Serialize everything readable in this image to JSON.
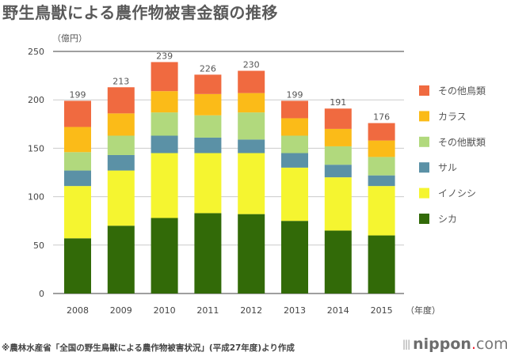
{
  "title": "野生鳥獣による農作物被害金額の推移",
  "unit_label": "（億円）",
  "year_label": "（年度）",
  "source": "※農林水産省「全国の野生鳥獣による農作物被害状況」(平成27年度)より作成",
  "logo": {
    "name": "nippon",
    "dot": ".",
    "suffix": "com"
  },
  "chart_data": {
    "type": "bar",
    "stacked": true,
    "title": "野生鳥獣による農作物被害金額の推移",
    "xlabel": "（年度）",
    "ylabel": "（億円）",
    "ylim": [
      0,
      250
    ],
    "yticks": [
      0,
      50,
      100,
      150,
      200,
      250
    ],
    "grid": true,
    "legend_position": "right",
    "categories": [
      "2008",
      "2009",
      "2010",
      "2011",
      "2012",
      "2013",
      "2014",
      "2015"
    ],
    "totals": [
      199,
      213,
      239,
      226,
      230,
      199,
      191,
      176
    ],
    "series": [
      {
        "name": "シカ",
        "color": "#326a08",
        "values": [
          57,
          70,
          78,
          83,
          82,
          75,
          65,
          60
        ]
      },
      {
        "name": "イノシシ",
        "color": "#f5f530",
        "values": [
          54,
          57,
          67,
          62,
          63,
          55,
          55,
          51
        ]
      },
      {
        "name": "サル",
        "color": "#5b91a6",
        "values": [
          16,
          16,
          18,
          16,
          14,
          15,
          13,
          11
        ]
      },
      {
        "name": "その他獣類",
        "color": "#b1d97d",
        "values": [
          19,
          20,
          24,
          23,
          28,
          18,
          19,
          19
        ]
      },
      {
        "name": "カラス",
        "color": "#fbbb18",
        "values": [
          26,
          23,
          22,
          22,
          20,
          18,
          18,
          17
        ]
      },
      {
        "name": "その他鳥類",
        "color": "#f06a40",
        "values": [
          27,
          27,
          30,
          20,
          23,
          18,
          21,
          18
        ]
      }
    ]
  }
}
